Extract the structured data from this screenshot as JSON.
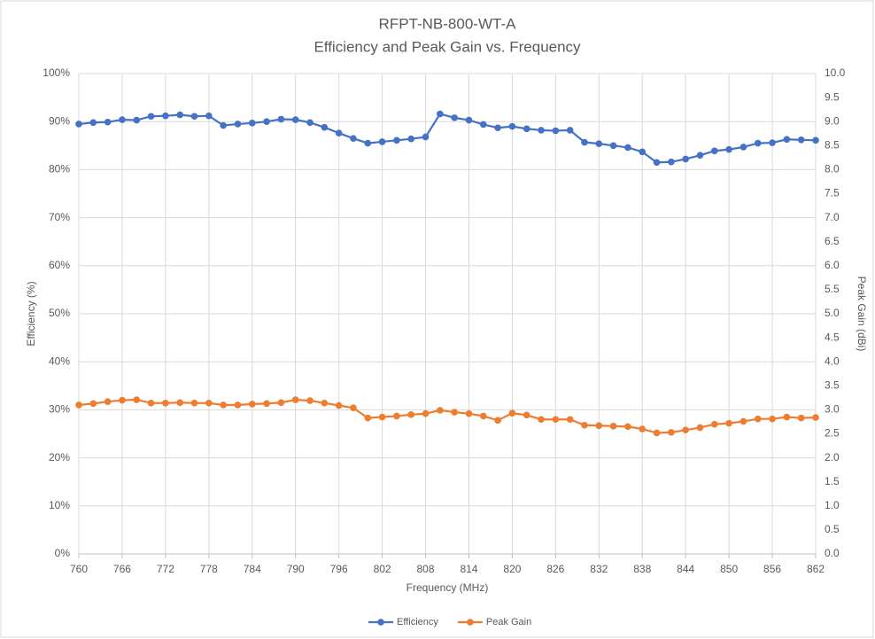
{
  "chart_data": {
    "type": "line",
    "title": "RFPT-NB-800-WT-A",
    "subtitle": "Efficiency and Peak Gain vs. Frequency",
    "x_label": "Frequency (MHz)",
    "y_label": "Efficiency (%)",
    "y2_label": "Peak Gain (dBi)",
    "x": [
      760,
      762,
      764,
      766,
      768,
      770,
      772,
      774,
      776,
      778,
      780,
      782,
      784,
      786,
      788,
      790,
      792,
      794,
      796,
      798,
      800,
      802,
      804,
      806,
      808,
      810,
      812,
      814,
      816,
      818,
      820,
      822,
      824,
      826,
      828,
      830,
      832,
      834,
      836,
      838,
      840,
      842,
      844,
      846,
      848,
      850,
      852,
      854,
      856,
      858,
      860,
      862
    ],
    "xlim": [
      760,
      862
    ],
    "xticks": [
      760,
      766,
      772,
      778,
      784,
      790,
      796,
      802,
      808,
      814,
      820,
      826,
      832,
      838,
      844,
      850,
      856,
      862
    ],
    "ylim": [
      0,
      100
    ],
    "yticks": [
      {
        "value": 0,
        "label": "0%"
      },
      {
        "value": 10,
        "label": "10%"
      },
      {
        "value": 20,
        "label": "20%"
      },
      {
        "value": 30,
        "label": "30%"
      },
      {
        "value": 40,
        "label": "40%"
      },
      {
        "value": 50,
        "label": "50%"
      },
      {
        "value": 60,
        "label": "60%"
      },
      {
        "value": 70,
        "label": "70%"
      },
      {
        "value": 80,
        "label": "80%"
      },
      {
        "value": 90,
        "label": "90%"
      },
      {
        "value": 100,
        "label": "100%"
      }
    ],
    "y2lim": [
      0,
      10
    ],
    "y2ticks": [
      {
        "value": 0,
        "label": "0.0"
      },
      {
        "value": 0.5,
        "label": "0.5"
      },
      {
        "value": 1,
        "label": "1.0"
      },
      {
        "value": 1.5,
        "label": "1.5"
      },
      {
        "value": 2,
        "label": "2.0"
      },
      {
        "value": 2.5,
        "label": "2.5"
      },
      {
        "value": 3,
        "label": "3.0"
      },
      {
        "value": 3.5,
        "label": "3.5"
      },
      {
        "value": 4,
        "label": "4.0"
      },
      {
        "value": 4.5,
        "label": "4.5"
      },
      {
        "value": 5,
        "label": "5.0"
      },
      {
        "value": 5.5,
        "label": "5.5"
      },
      {
        "value": 6,
        "label": "6.0"
      },
      {
        "value": 6.5,
        "label": "6.5"
      },
      {
        "value": 7,
        "label": "7.0"
      },
      {
        "value": 7.5,
        "label": "7.5"
      },
      {
        "value": 8,
        "label": "8.0"
      },
      {
        "value": 8.5,
        "label": "8.5"
      },
      {
        "value": 9,
        "label": "9.0"
      },
      {
        "value": 9.5,
        "label": "9.5"
      },
      {
        "value": 10,
        "label": "10.0"
      }
    ],
    "grid": true,
    "legend": "bottom",
    "series": [
      {
        "name": "Efficiency",
        "color": "#4472c4",
        "values": [
          89.5,
          89.8,
          89.9,
          90.4,
          90.3,
          91.1,
          91.2,
          91.4,
          91.1,
          91.2,
          89.2,
          89.5,
          89.7,
          90.0,
          90.5,
          90.4,
          89.8,
          88.8,
          87.6,
          86.5,
          85.5,
          85.8,
          86.1,
          86.4,
          86.8,
          91.6,
          90.8,
          90.3,
          89.4,
          88.7,
          89.0,
          88.5,
          88.2,
          88.1,
          88.2,
          85.7,
          85.4,
          85.0,
          84.6,
          83.7,
          81.5,
          81.6,
          82.2,
          83.0,
          83.9,
          84.2,
          84.7,
          85.5,
          85.6,
          86.3,
          86.2,
          86.1
        ]
      },
      {
        "name": "Peak Gain",
        "color": "#ed7d31",
        "axis": "y2",
        "values": [
          3.1,
          3.13,
          3.17,
          3.2,
          3.21,
          3.14,
          3.14,
          3.15,
          3.14,
          3.14,
          3.1,
          3.1,
          3.12,
          3.13,
          3.15,
          3.21,
          3.19,
          3.14,
          3.09,
          3.04,
          2.83,
          2.85,
          2.87,
          2.9,
          2.92,
          2.99,
          2.95,
          2.92,
          2.87,
          2.78,
          2.93,
          2.89,
          2.8,
          2.8,
          2.8,
          2.68,
          2.67,
          2.66,
          2.65,
          2.6,
          2.52,
          2.53,
          2.58,
          2.63,
          2.7,
          2.72,
          2.76,
          2.81,
          2.81,
          2.85,
          2.83,
          2.84
        ]
      }
    ]
  }
}
